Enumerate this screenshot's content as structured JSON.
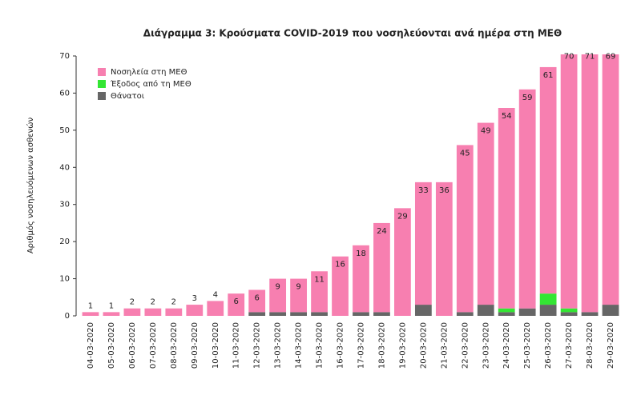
{
  "chart_data": {
    "type": "stacked-bar",
    "title": "Διάγραμμα 3: Κρούσματα COVID-2019 που νοσηλεύονται ανά ημέρα στη ΜΕΘ",
    "y_label": "Αριθμός νοσηλευόμενων ασθενών",
    "categories": [
      "04-03-2020",
      "05-03-2020",
      "06-03-2020",
      "07-03-2020",
      "08-03-2020",
      "09-03-2020",
      "10-03-2020",
      "11-03-2020",
      "12-03-2020",
      "13-03-2020",
      "14-03-2020",
      "15-03-2020",
      "16-03-2020",
      "17-03-2020",
      "18-03-2020",
      "19-03-2020",
      "20-03-2020",
      "21-03-2020",
      "22-03-2020",
      "23-03-2020",
      "24-03-2020",
      "25-03-2020",
      "26-03-2020",
      "27-03-2020",
      "28-03-2020",
      "29-03-2020"
    ],
    "series": [
      {
        "name": "Νοσηλεία στη ΜΕΘ",
        "color": "#f77fb0",
        "values": [
          1,
          1,
          2,
          2,
          2,
          3,
          4,
          6,
          6,
          9,
          9,
          11,
          16,
          18,
          24,
          29,
          33,
          36,
          45,
          49,
          54,
          59,
          61,
          70,
          71,
          69
        ]
      },
      {
        "name": "Έξοδος από τη ΜΕΘ",
        "color": "#33e633",
        "values": [
          0,
          0,
          0,
          0,
          0,
          0,
          0,
          0,
          0,
          0,
          0,
          0,
          0,
          0,
          0,
          0,
          0,
          0,
          0,
          0,
          1,
          0,
          3,
          1,
          0,
          0
        ]
      },
      {
        "name": "Θάνατοι",
        "color": "#666666",
        "values": [
          0,
          0,
          0,
          0,
          0,
          0,
          0,
          0,
          1,
          1,
          1,
          1,
          0,
          1,
          1,
          0,
          3,
          0,
          1,
          3,
          1,
          2,
          3,
          1,
          1,
          3
        ]
      }
    ],
    "ylim": [
      0,
      70
    ],
    "yticks": [
      0,
      10,
      20,
      30,
      40,
      50,
      60,
      70
    ],
    "legend": "top-left"
  }
}
